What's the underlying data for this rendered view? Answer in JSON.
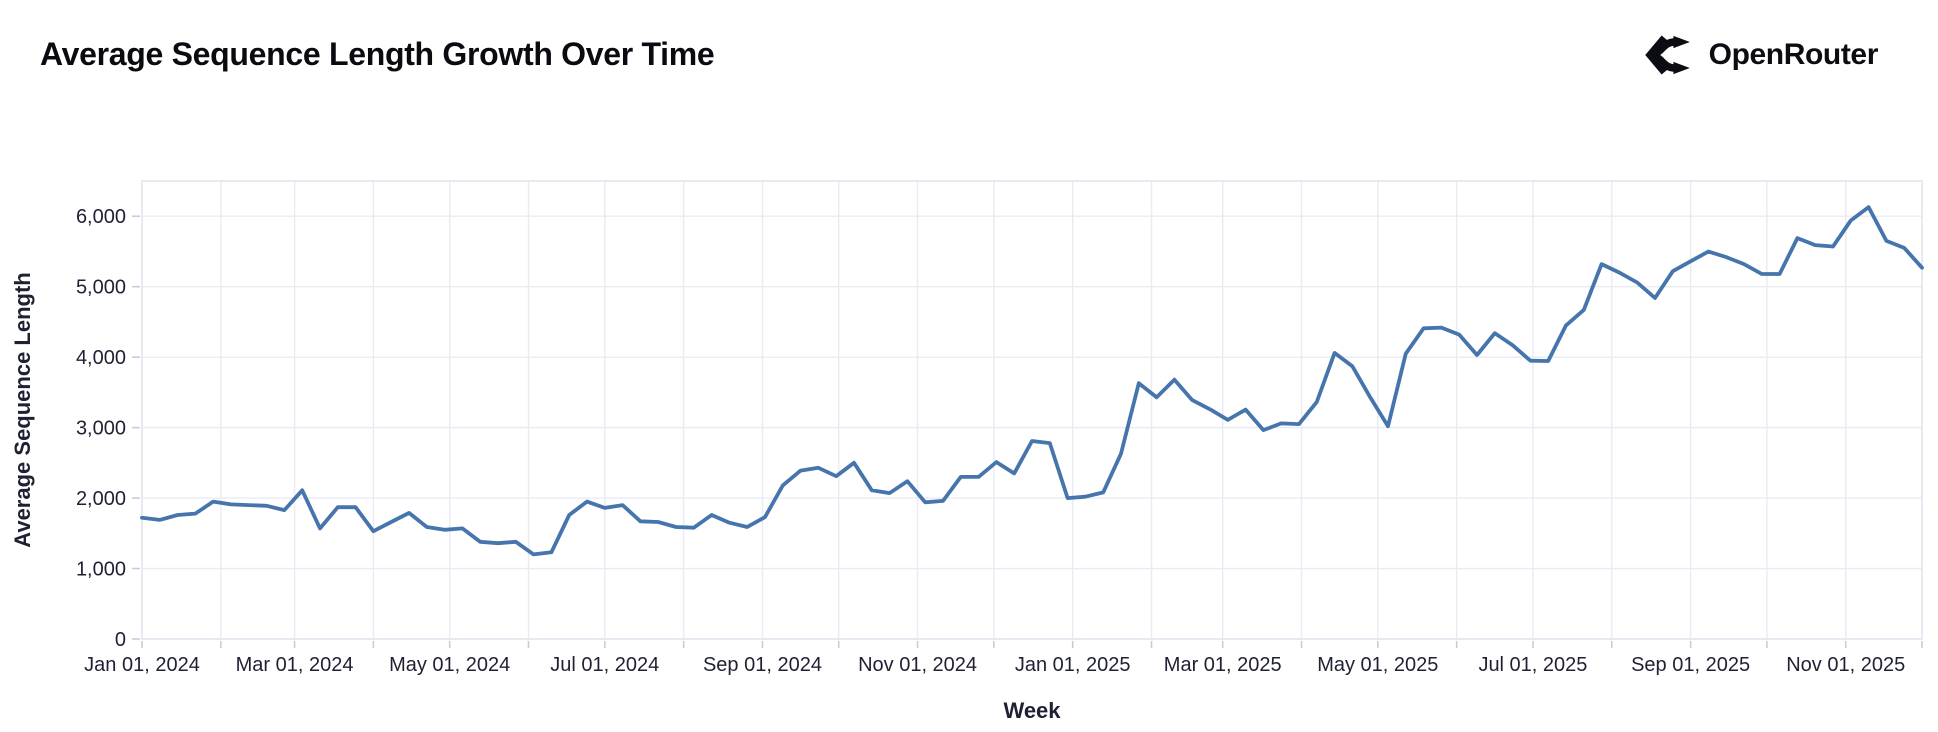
{
  "header": {
    "title": "Average Sequence Length Growth Over Time",
    "brand_name": "OpenRouter"
  },
  "colors": {
    "line": "#4674ac",
    "grid": "#e9ebf3",
    "plot_border": "#e3e5ee",
    "tick_mark": "#c9ccd6",
    "tick_text": "#1f2133",
    "title_text": "#0a0b10",
    "background": "#ffffff"
  },
  "chart_data": {
    "type": "line",
    "title": "Average Sequence Length Growth Over Time",
    "xlabel": "Week",
    "ylabel": "Average Sequence Length",
    "series_name": "Average Sequence Length",
    "legend": "none",
    "grid": "horizontal every 1000, vertical every month",
    "x_start_date": "2024-01-01",
    "x_step_days": 7,
    "x_end_date": "2025-12-01",
    "ylim": [
      0,
      6500
    ],
    "y_ticks": [
      0,
      1000,
      2000,
      3000,
      4000,
      5000,
      6000
    ],
    "y_tick_labels": [
      "0",
      "1,000",
      "2,000",
      "3,000",
      "4,000",
      "5,000",
      "6,000"
    ],
    "x_tick_labels": [
      "Jan 01, 2024",
      "Mar 01, 2024",
      "May 01, 2024",
      "Jul 01, 2024",
      "Sep 01, 2024",
      "Nov 01, 2024",
      "Jan 01, 2025",
      "Mar 01, 2025",
      "May 01, 2025",
      "Jul 01, 2025",
      "Sep 01, 2025",
      "Nov 01, 2025"
    ],
    "x_tick_label_step_months": 2,
    "values": [
      1720,
      1690,
      1760,
      1780,
      1950,
      1910,
      1900,
      1890,
      1830,
      2110,
      1570,
      1870,
      1870,
      1530,
      1660,
      1790,
      1590,
      1550,
      1570,
      1380,
      1360,
      1380,
      1200,
      1230,
      1760,
      1950,
      1860,
      1900,
      1670,
      1660,
      1590,
      1580,
      1760,
      1650,
      1590,
      1730,
      2180,
      2390,
      2430,
      2310,
      2500,
      2110,
      2070,
      2240,
      1940,
      1960,
      2300,
      2300,
      2510,
      2350,
      2810,
      2780,
      2000,
      2020,
      2080,
      2630,
      3630,
      3430,
      3680,
      3390,
      3260,
      3110,
      3255,
      2965,
      3060,
      3050,
      3365,
      4060,
      3870,
      3430,
      3020,
      4050,
      4410,
      4420,
      4320,
      4030,
      4340,
      4170,
      3950,
      3945,
      4450,
      4670,
      5320,
      5200,
      5060,
      4840,
      5220,
      5360,
      5500,
      5420,
      5320,
      5180,
      5180,
      5690,
      5590,
      5570,
      5940,
      6130,
      5650,
      5550,
      5270
    ]
  }
}
